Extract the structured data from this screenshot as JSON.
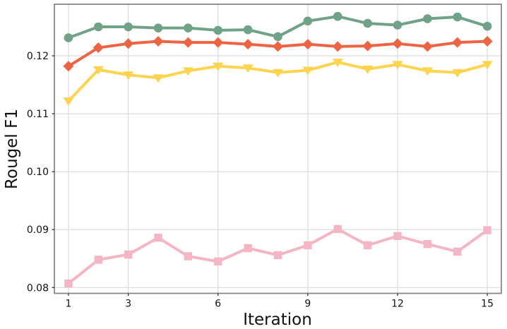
{
  "chart_data": {
    "type": "line",
    "title": "",
    "xlabel": "Iteration",
    "ylabel": "Rougel F1",
    "grid": true,
    "legend": "none",
    "xlim": [
      0.53,
      15.47
    ],
    "ylim": [
      0.079,
      0.1289
    ],
    "xticks": [
      1,
      3,
      6,
      9,
      12,
      15
    ],
    "yticks": [
      0.08,
      0.09,
      0.1,
      0.11,
      0.12
    ],
    "x": [
      1,
      2,
      3,
      4,
      5,
      6,
      7,
      8,
      9,
      10,
      11,
      12,
      13,
      14,
      15
    ],
    "series": [
      {
        "name": "green",
        "color": "#6fa287",
        "marker": "circle",
        "values": [
          0.1231,
          0.125,
          0.125,
          0.1248,
          0.1248,
          0.1244,
          0.1245,
          0.1233,
          0.126,
          0.1268,
          0.1256,
          0.1253,
          0.1264,
          0.1267,
          0.1251
        ]
      },
      {
        "name": "orange-red",
        "color": "#ee6342",
        "marker": "diamond",
        "values": [
          0.1182,
          0.1214,
          0.1221,
          0.1225,
          0.1223,
          0.1223,
          0.122,
          0.1216,
          0.122,
          0.1216,
          0.1217,
          0.1221,
          0.1216,
          0.1223,
          0.1225
        ]
      },
      {
        "name": "yellow",
        "color": "#fcd44f",
        "marker": "triangle-down",
        "values": [
          0.1122,
          0.1176,
          0.1167,
          0.1162,
          0.1174,
          0.1182,
          0.1179,
          0.1171,
          0.1175,
          0.1189,
          0.1177,
          0.1185,
          0.1174,
          0.1171,
          0.1185
        ]
      },
      {
        "name": "pink",
        "color": "#f4b6c4",
        "marker": "square",
        "values": [
          0.0807,
          0.0848,
          0.0857,
          0.0886,
          0.0854,
          0.0845,
          0.0868,
          0.0856,
          0.0873,
          0.0901,
          0.0873,
          0.0889,
          0.0875,
          0.0862,
          0.0899
        ]
      }
    ],
    "colors": {
      "grid": "#dcdcdc",
      "spine": "#888888",
      "tick": "#262626",
      "text": "#111111",
      "background": "#ffffff"
    }
  }
}
